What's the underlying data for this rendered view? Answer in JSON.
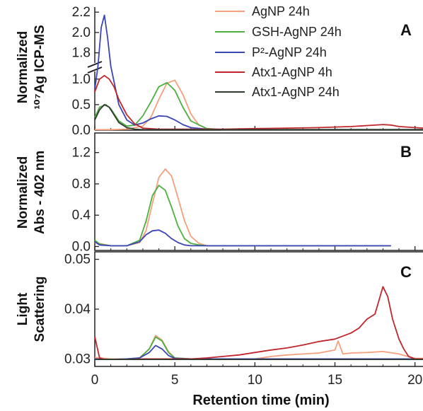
{
  "legend": [
    {
      "label": "AgNP 24h",
      "color": "#f4a07e"
    },
    {
      "label": "GSH-AgNP 24h",
      "color": "#4caf3f"
    },
    {
      "label": "P²-AgNP 24h",
      "color": "#3b45b6"
    },
    {
      "label": "Atx1-AgNP 4h",
      "color": "#c0272d"
    },
    {
      "label": "Atx1-AgNP 24h",
      "color": "#2e3a2e"
    }
  ],
  "xlabel": "Retention time (min)",
  "chart_data": [
    {
      "type": "line",
      "panel": "A",
      "ylabel_line1": "Normalized",
      "ylabel_line2": "¹⁰⁷Ag ICP-MS",
      "xlim": [
        0,
        20.5
      ],
      "broken_axis": true,
      "ylim_lower": [
        0,
        1.15
      ],
      "ylim_upper": [
        1.7,
        2.25
      ],
      "xticks": [
        "0",
        "5",
        "10",
        "15",
        "20"
      ],
      "yticks_lower": [
        "0.0",
        "0.5",
        "1.0"
      ],
      "yticks_upper": [
        "1.8",
        "2.0",
        "2.2"
      ],
      "series": [
        {
          "name": "AgNP 24h",
          "x": [
            0,
            1,
            2,
            3,
            3.5,
            4,
            4.5,
            5,
            5.5,
            6,
            6.5,
            7,
            8,
            20.5
          ],
          "y": [
            0.01,
            0.01,
            0.02,
            0.08,
            0.25,
            0.6,
            0.92,
            0.98,
            0.7,
            0.32,
            0.1,
            0.03,
            0.01,
            0.01
          ]
        },
        {
          "name": "GSH-AgNP 24h",
          "x": [
            0,
            0.3,
            0.7,
            1,
            1.5,
            2,
            2.5,
            3,
            3.5,
            4,
            4.5,
            5,
            5.5,
            6,
            7,
            8,
            20.5
          ],
          "y": [
            0.25,
            0.45,
            0.5,
            0.42,
            0.18,
            0.08,
            0.1,
            0.28,
            0.55,
            0.85,
            0.93,
            0.78,
            0.45,
            0.18,
            0.03,
            0.01,
            0.01
          ]
        },
        {
          "name": "P²-AgNP 24h",
          "x": [
            0,
            0.2,
            0.4,
            0.6,
            0.8,
            1,
            1.2,
            1.5,
            2,
            2.5,
            3,
            3.5,
            4,
            4.5,
            5,
            5.5,
            6,
            7,
            8,
            20.5
          ],
          "y": [
            0.8,
            1.5,
            2.05,
            2.17,
            1.95,
            1.5,
            0.95,
            0.5,
            0.2,
            0.1,
            0.14,
            0.22,
            0.28,
            0.27,
            0.2,
            0.11,
            0.05,
            0.02,
            0.01,
            0.01
          ]
        },
        {
          "name": "Atx1-AgNP 4h",
          "x": [
            0,
            0.3,
            0.6,
            0.9,
            1.2,
            1.5,
            2,
            2.5,
            3,
            4,
            6,
            8,
            10,
            12,
            14,
            16,
            17,
            18,
            18.5,
            19,
            20.5
          ],
          "y": [
            0.75,
            1.0,
            1.07,
            1.0,
            0.85,
            0.6,
            0.3,
            0.12,
            0.04,
            0.02,
            0.02,
            0.02,
            0.03,
            0.04,
            0.05,
            0.07,
            0.09,
            0.11,
            0.1,
            0.07,
            0.04
          ]
        },
        {
          "name": "Atx1-AgNP 24h",
          "x": [
            0,
            0.3,
            0.6,
            0.9,
            1.2,
            1.5,
            2,
            2.5,
            3,
            4,
            6,
            10,
            20.5
          ],
          "y": [
            0.2,
            0.4,
            0.5,
            0.45,
            0.3,
            0.15,
            0.05,
            0.02,
            0.01,
            0.01,
            0.01,
            0.01,
            0.01
          ]
        }
      ]
    },
    {
      "type": "line",
      "panel": "B",
      "ylabel_line1": "Normalized",
      "ylabel_line2": "Abs - 402 nm",
      "xlim": [
        0,
        20.5
      ],
      "ylim": [
        -0.05,
        1.45
      ],
      "xticks": [
        "0",
        "5",
        "10",
        "15",
        "20"
      ],
      "yticks": [
        "0.0",
        "0.4",
        "0.8",
        "1.2"
      ],
      "series": [
        {
          "name": "AgNP 24h",
          "x": [
            0,
            1,
            2,
            2.8,
            3.2,
            3.6,
            4,
            4.4,
            4.8,
            5.2,
            5.6,
            6,
            6.5,
            7,
            8,
            18.5
          ],
          "y": [
            0.05,
            0.01,
            0.01,
            0.05,
            0.2,
            0.55,
            0.88,
            0.99,
            0.9,
            0.62,
            0.33,
            0.13,
            0.04,
            0.01,
            0.01,
            0.01
          ]
        },
        {
          "name": "GSH-AgNP 24h",
          "x": [
            0,
            0.3,
            1,
            2,
            2.8,
            3.2,
            3.6,
            4,
            4.4,
            4.8,
            5.2,
            5.6,
            6,
            6.5,
            7,
            8,
            18.5
          ],
          "y": [
            0.08,
            0.03,
            0.01,
            0.01,
            0.08,
            0.32,
            0.65,
            0.78,
            0.72,
            0.5,
            0.26,
            0.1,
            0.04,
            0.02,
            0.01,
            0.01,
            0.01
          ]
        },
        {
          "name": "P²-AgNP 24h",
          "x": [
            0,
            0.3,
            1,
            2,
            2.8,
            3.2,
            3.6,
            4,
            4.4,
            4.8,
            5.2,
            5.6,
            6,
            7,
            8,
            18.5
          ],
          "y": [
            0.06,
            0.02,
            0.01,
            0.01,
            0.06,
            0.15,
            0.2,
            0.21,
            0.17,
            0.1,
            0.05,
            0.02,
            0.01,
            0.01,
            0.01,
            0.01
          ]
        }
      ]
    },
    {
      "type": "line",
      "panel": "C",
      "ylabel_line1": "Light",
      "ylabel_line2": "Scattering",
      "xlim": [
        0,
        20.5
      ],
      "ylim": [
        0.0285,
        0.0515
      ],
      "xticks": [
        "0",
        "5",
        "10",
        "15",
        "20"
      ],
      "yticks": [
        "0.03",
        "0.04",
        "0.05"
      ],
      "series": [
        {
          "name": "AgNP 24h",
          "x": [
            0,
            1,
            2,
            2.8,
            3.4,
            3.8,
            4.2,
            4.6,
            5,
            6,
            8,
            10,
            11,
            12,
            13,
            14,
            14.5,
            15,
            15.2,
            15.5,
            16,
            17,
            18,
            19,
            20,
            20.5
          ],
          "y": [
            0.0303,
            0.03,
            0.03,
            0.0302,
            0.032,
            0.0347,
            0.0338,
            0.0315,
            0.0302,
            0.03,
            0.03,
            0.03,
            0.0305,
            0.0308,
            0.031,
            0.0312,
            0.0315,
            0.0318,
            0.0336,
            0.031,
            0.0312,
            0.0313,
            0.0315,
            0.031,
            0.0301,
            0.0301
          ]
        },
        {
          "name": "GSH-AgNP 24h",
          "x": [
            0,
            1,
            2,
            2.8,
            3.4,
            3.8,
            4.2,
            4.6,
            5,
            6,
            20.5
          ],
          "y": [
            0.03,
            0.0299,
            0.03,
            0.0302,
            0.032,
            0.0344,
            0.0336,
            0.0313,
            0.0302,
            0.03,
            0.03
          ]
        },
        {
          "name": "P²-AgNP 24h",
          "x": [
            0,
            1,
            2,
            2.8,
            3.4,
            3.8,
            4.2,
            4.6,
            5,
            6,
            20.5
          ],
          "y": [
            0.03,
            0.0299,
            0.03,
            0.0302,
            0.0313,
            0.0327,
            0.032,
            0.0307,
            0.0301,
            0.03,
            0.03
          ]
        },
        {
          "name": "Atx1-AgNP 4h",
          "x": [
            0,
            0.1,
            0.3,
            0.6,
            1,
            2,
            3,
            4,
            5,
            6,
            7,
            8,
            9,
            10,
            11,
            12,
            13,
            14,
            15,
            16,
            16.5,
            17,
            17.5,
            18,
            18.3,
            18.6,
            19,
            19.3,
            19.6,
            20,
            20.5
          ],
          "y": [
            0.0345,
            0.033,
            0.0302,
            0.0299,
            0.0299,
            0.0299,
            0.03,
            0.03,
            0.03,
            0.03,
            0.0302,
            0.0305,
            0.0308,
            0.0313,
            0.0318,
            0.0322,
            0.0328,
            0.0335,
            0.034,
            0.0352,
            0.0362,
            0.038,
            0.039,
            0.0445,
            0.0425,
            0.038,
            0.034,
            0.032,
            0.0305,
            0.03,
            0.03
          ]
        },
        {
          "name": "Atx1-AgNP 24h",
          "x": [
            0,
            20.5
          ],
          "y": [
            0.0299,
            0.0299
          ]
        }
      ]
    }
  ]
}
